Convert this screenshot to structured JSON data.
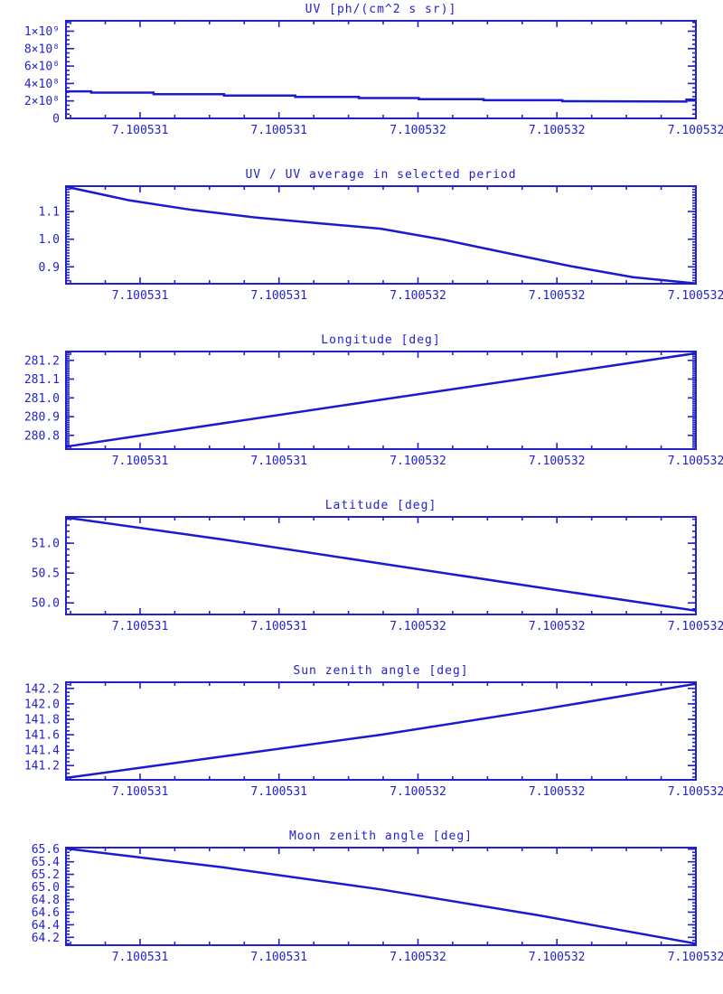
{
  "page": {
    "background": "#ffffff",
    "axis_color": "#2222cc",
    "text_color": "#2222cc",
    "line_color": "#1a1ad1"
  },
  "chart_data": [
    {
      "type": "line",
      "style": "steps",
      "title": "UV [ph/(cm^2 s sr)]",
      "ylim": [
        0,
        1119000000
      ],
      "ytick_values": [
        0,
        200000000,
        400000000,
        600000000,
        800000000,
        1000000000
      ],
      "ytick_labels": [
        "0",
        "2×10⁸",
        "4×10⁸",
        "6×10⁸",
        "8×10⁸",
        "1×10⁹"
      ],
      "y_minor_step": 50000000,
      "xtick_pos": [
        0.1176,
        0.3382,
        0.5588,
        0.7794,
        1.0
      ],
      "xtick_labels": [
        "7.100531",
        "7.100531",
        "7.100532",
        "7.100532",
        "7.100532"
      ],
      "x_minor_intervals": 4,
      "series": {
        "x": [
          0,
          0.04,
          0.04,
          0.139,
          0.139,
          0.251,
          0.251,
          0.364,
          0.364,
          0.465,
          0.465,
          0.56,
          0.56,
          0.663,
          0.663,
          0.788,
          0.788,
          0.985,
          0.985,
          1.0
        ],
        "y": [
          310000000,
          310000000,
          295000000,
          295000000,
          278000000,
          278000000,
          262000000,
          262000000,
          247000000,
          247000000,
          233000000,
          233000000,
          220000000,
          220000000,
          208000000,
          208000000,
          197000000,
          193000000,
          215000000,
          215000000
        ]
      }
    },
    {
      "type": "line",
      "style": "curve",
      "title": "UV / UV average in selected period",
      "ylim": [
        0.839,
        1.192
      ],
      "ytick_values": [
        0.9,
        1.0,
        1.1
      ],
      "ytick_labels": [
        "0.9",
        "1.0",
        "1.1"
      ],
      "y_minor_step": 0.01,
      "xtick_pos": [
        0.1176,
        0.3382,
        0.5588,
        0.7794,
        1.0
      ],
      "xtick_labels": [
        "7.100531",
        "7.100531",
        "7.100532",
        "7.100532",
        "7.100532"
      ],
      "x_minor_intervals": 4,
      "series": {
        "x": [
          0,
          0.1,
          0.2,
          0.3,
          0.4,
          0.5,
          0.6,
          0.7,
          0.8,
          0.9,
          1.0
        ],
        "y": [
          1.19,
          1.141,
          1.106,
          1.079,
          1.058,
          1.038,
          0.998,
          0.95,
          0.903,
          0.863,
          0.84
        ]
      }
    },
    {
      "type": "line",
      "style": "curve",
      "title": "Longitude [deg]",
      "ylim": [
        280.727,
        281.247
      ],
      "ytick_values": [
        280.8,
        280.9,
        281.0,
        281.1,
        281.2
      ],
      "ytick_labels": [
        "280.8",
        "280.9",
        "281.0",
        "281.1",
        "281.2"
      ],
      "y_minor_step": 0.01,
      "xtick_pos": [
        0.1176,
        0.3382,
        0.5588,
        0.7794,
        1.0
      ],
      "xtick_labels": [
        "7.100531",
        "7.100531",
        "7.100532",
        "7.100532",
        "7.100532"
      ],
      "x_minor_intervals": 4,
      "series": {
        "x": [
          0,
          0.5,
          1.0
        ],
        "y": [
          280.74,
          280.99,
          281.238
        ]
      }
    },
    {
      "type": "line",
      "style": "curve",
      "title": "Latitude [deg]",
      "ylim": [
        49.807,
        51.44
      ],
      "ytick_values": [
        50.0,
        50.5,
        51.0
      ],
      "ytick_labels": [
        "50.0",
        "50.5",
        "51.0"
      ],
      "y_minor_step": 0.1,
      "xtick_pos": [
        0.1176,
        0.3382,
        0.5588,
        0.7794,
        1.0
      ],
      "xtick_labels": [
        "7.100531",
        "7.100531",
        "7.100532",
        "7.100532",
        "7.100532"
      ],
      "x_minor_intervals": 4,
      "series": {
        "x": [
          0,
          0.25,
          0.5,
          0.75,
          1.0
        ],
        "y": [
          51.43,
          51.06,
          50.66,
          50.26,
          49.87
        ]
      }
    },
    {
      "type": "line",
      "style": "curve",
      "title": "Sun zenith angle [deg]",
      "ylim": [
        141.015,
        142.28
      ],
      "ytick_values": [
        141.2,
        141.4,
        141.6,
        141.8,
        142.0,
        142.2
      ],
      "ytick_labels": [
        "141.2",
        "141.4",
        "141.6",
        "141.8",
        "142.0",
        "142.2"
      ],
      "y_minor_step": 0.05,
      "xtick_pos": [
        0.1176,
        0.3382,
        0.5588,
        0.7794,
        1.0
      ],
      "xtick_labels": [
        "7.100531",
        "7.100531",
        "7.100532",
        "7.100532",
        "7.100532"
      ],
      "x_minor_intervals": 4,
      "series": {
        "x": [
          0,
          0.25,
          0.5,
          0.75,
          1.0
        ],
        "y": [
          141.04,
          141.32,
          141.6,
          141.92,
          142.26
        ]
      }
    },
    {
      "type": "line",
      "style": "curve",
      "title": "Moon zenith angle [deg]",
      "ylim": [
        64.075,
        65.625
      ],
      "ytick_values": [
        64.2,
        64.4,
        64.6,
        64.8,
        65.0,
        65.2,
        65.4,
        65.6
      ],
      "ytick_labels": [
        "64.2",
        "64.4",
        "64.6",
        "64.8",
        "65.0",
        "65.2",
        "65.4",
        "65.6"
      ],
      "y_minor_step": 0.05,
      "xtick_pos": [
        0.1176,
        0.3382,
        0.5588,
        0.7794,
        1.0
      ],
      "xtick_labels": [
        "7.100531",
        "7.100531",
        "7.100532",
        "7.100532",
        "7.100532"
      ],
      "x_minor_intervals": 4,
      "series": {
        "x": [
          0,
          0.25,
          0.5,
          0.75,
          1.0
        ],
        "y": [
          65.61,
          65.31,
          64.96,
          64.55,
          64.1
        ]
      }
    }
  ]
}
